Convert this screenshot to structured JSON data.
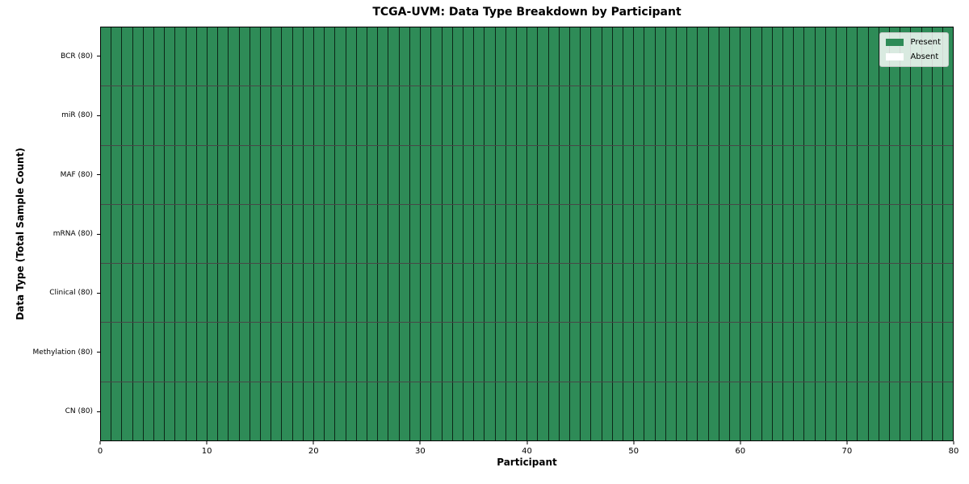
{
  "chart_data": {
    "type": "heatmap",
    "title": "TCGA-UVM: Data Type Breakdown by Participant",
    "xlabel": "Participant",
    "ylabel": "Data Type (Total Sample Count)",
    "xlim": [
      0,
      80
    ],
    "x_ticks": [
      0,
      10,
      20,
      30,
      40,
      50,
      60,
      70,
      80
    ],
    "n_participants": 80,
    "grid_on": false,
    "colors": {
      "present": "#2e8b57",
      "absent": "#ffffff",
      "cell_edge": "#1a1a1a"
    },
    "legend": {
      "position": "upper right",
      "entries": [
        {
          "label": "Present",
          "color": "#2e8b57"
        },
        {
          "label": "Absent",
          "color": "#ffffff"
        }
      ]
    },
    "rows": [
      {
        "label": "BCR (80)",
        "present_count": 80,
        "absent_count": 0,
        "cells": "11111111111111111111111111111111111111111111111111111111111111111111111111111111"
      },
      {
        "label": "miR (80)",
        "present_count": 80,
        "absent_count": 0,
        "cells": "11111111111111111111111111111111111111111111111111111111111111111111111111111111"
      },
      {
        "label": "MAF (80)",
        "present_count": 80,
        "absent_count": 0,
        "cells": "11111111111111111111111111111111111111111111111111111111111111111111111111111111"
      },
      {
        "label": "mRNA (80)",
        "present_count": 80,
        "absent_count": 0,
        "cells": "11111111111111111111111111111111111111111111111111111111111111111111111111111111"
      },
      {
        "label": "Clinical (80)",
        "present_count": 80,
        "absent_count": 0,
        "cells": "11111111111111111111111111111111111111111111111111111111111111111111111111111111"
      },
      {
        "label": "Methylation (80)",
        "present_count": 80,
        "absent_count": 0,
        "cells": "11111111111111111111111111111111111111111111111111111111111111111111111111111111"
      },
      {
        "label": "CN (80)",
        "present_count": 80,
        "absent_count": 0,
        "cells": "11111111111111111111111111111111111111111111111111111111111111111111111111111111"
      }
    ]
  }
}
